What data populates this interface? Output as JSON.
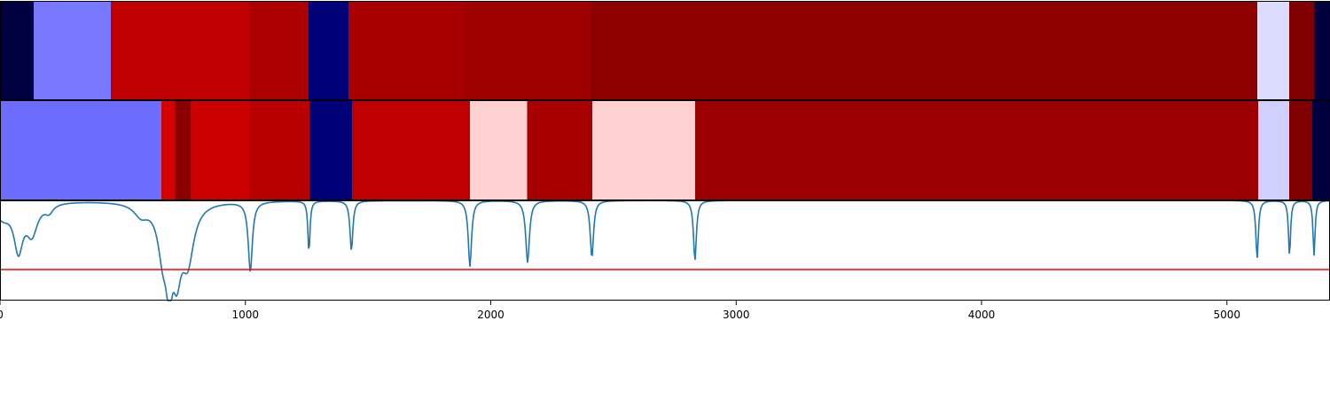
{
  "chart_data": {
    "type": "heatmap",
    "xlim": [
      0,
      5420
    ],
    "x_ticks": [
      0,
      1000,
      2000,
      3000,
      4000,
      5000
    ],
    "x_tick_labels": [
      "0",
      "1000",
      "2000",
      "3000",
      "4000",
      "5000"
    ],
    "tracks": [
      {
        "segments": [
          {
            "start": 0,
            "end": 137,
            "color": "#000040"
          },
          {
            "start": 137,
            "end": 452,
            "color": "#7878ff"
          },
          {
            "start": 452,
            "end": 1015,
            "color": "#c00000"
          },
          {
            "start": 1015,
            "end": 1257,
            "color": "#aa0000"
          },
          {
            "start": 1257,
            "end": 1420,
            "color": "#000078"
          },
          {
            "start": 1420,
            "end": 1894,
            "color": "#a80000"
          },
          {
            "start": 1894,
            "end": 2406,
            "color": "#9e0000"
          },
          {
            "start": 2406,
            "end": 5123,
            "color": "#8c0000"
          },
          {
            "start": 5123,
            "end": 5254,
            "color": "#dcdcff"
          },
          {
            "start": 5254,
            "end": 5356,
            "color": "#800000"
          },
          {
            "start": 5356,
            "end": 5420,
            "color": "#000040"
          }
        ]
      },
      {
        "segments": [
          {
            "start": 0,
            "end": 658,
            "color": "#6c6cff"
          },
          {
            "start": 658,
            "end": 713,
            "color": "#d40000"
          },
          {
            "start": 713,
            "end": 776,
            "color": "#880000"
          },
          {
            "start": 776,
            "end": 1015,
            "color": "#cc0000"
          },
          {
            "start": 1015,
            "end": 1263,
            "color": "#b80000"
          },
          {
            "start": 1263,
            "end": 1434,
            "color": "#000078"
          },
          {
            "start": 1434,
            "end": 1915,
            "color": "#c00000"
          },
          {
            "start": 1915,
            "end": 2148,
            "color": "#ffd0d0"
          },
          {
            "start": 2148,
            "end": 2413,
            "color": "#a80000"
          },
          {
            "start": 2413,
            "end": 2833,
            "color": "#ffd0d0"
          },
          {
            "start": 2833,
            "end": 5127,
            "color": "#9c0000"
          },
          {
            "start": 5127,
            "end": 5254,
            "color": "#d0d0ff"
          },
          {
            "start": 5254,
            "end": 5348,
            "color": "#800000"
          },
          {
            "start": 5348,
            "end": 5420,
            "color": "#000040"
          }
        ]
      }
    ],
    "line_panel": {
      "ylim": [
        0,
        1
      ],
      "threshold": {
        "y": 0.31,
        "color": "#ff0000"
      },
      "series": {
        "color": "#1f77b4",
        "baseline": 1.0,
        "dips": [
          {
            "x": 10,
            "depth": 0.15,
            "width": 40
          },
          {
            "x": 75,
            "depth": 0.45,
            "width": 22
          },
          {
            "x": 130,
            "depth": 0.3,
            "width": 28
          },
          {
            "x": 200,
            "depth": 0.08,
            "width": 20
          },
          {
            "x": 575,
            "depth": 0.12,
            "width": 35
          },
          {
            "x": 665,
            "depth": 0.5,
            "width": 25
          },
          {
            "x": 690,
            "depth": 0.65,
            "width": 12
          },
          {
            "x": 720,
            "depth": 0.6,
            "width": 22
          },
          {
            "x": 765,
            "depth": 0.55,
            "width": 30
          },
          {
            "x": 1020,
            "depth": 0.7,
            "width": 10
          },
          {
            "x": 1259,
            "depth": 0.52,
            "width": 5
          },
          {
            "x": 1432,
            "depth": 0.5,
            "width": 7
          },
          {
            "x": 1915,
            "depth": 0.66,
            "width": 8
          },
          {
            "x": 2150,
            "depth": 0.62,
            "width": 9
          },
          {
            "x": 2412,
            "depth": 0.57,
            "width": 8
          },
          {
            "x": 2832,
            "depth": 0.6,
            "width": 7
          },
          {
            "x": 5123,
            "depth": 0.58,
            "width": 6
          },
          {
            "x": 5255,
            "depth": 0.56,
            "width": 5
          },
          {
            "x": 5355,
            "depth": 0.55,
            "width": 5
          }
        ]
      }
    }
  }
}
